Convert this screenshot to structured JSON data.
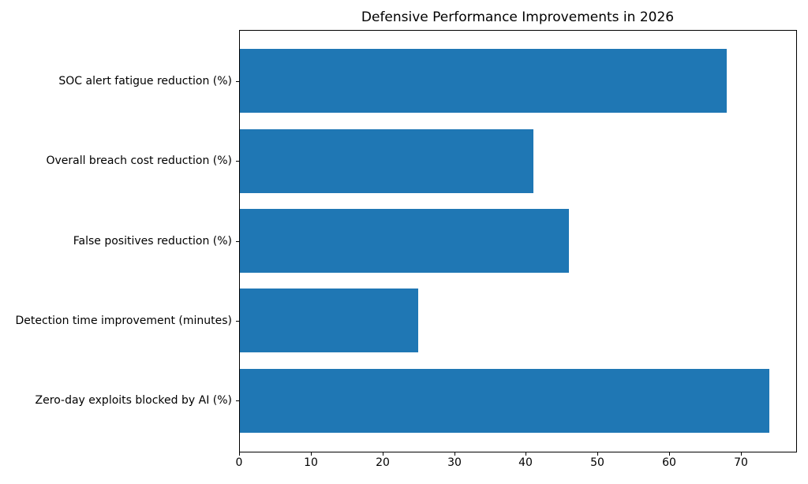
{
  "chart_data": {
    "type": "bar",
    "orientation": "horizontal",
    "title": "Defensive Performance Improvements in 2026",
    "categories": [
      "SOC alert fatigue reduction (%)",
      "Overall breach cost reduction (%)",
      "False positives reduction (%)",
      "Detection time improvement (minutes)",
      "Zero-day exploits blocked by AI (%)"
    ],
    "values": [
      68,
      41,
      46,
      25,
      74
    ],
    "xlabel": "",
    "ylabel": "",
    "xlim": [
      0,
      77.7
    ],
    "ylim": [
      -0.64,
      4.64
    ],
    "xticks": [
      0,
      10,
      20,
      30,
      40,
      50,
      60,
      70
    ],
    "bar_thickness_units": 0.8,
    "bar_color": "#1f77b4",
    "background_color": "#ffffff",
    "text_color": "#000000",
    "grid": false,
    "legend": null
  }
}
